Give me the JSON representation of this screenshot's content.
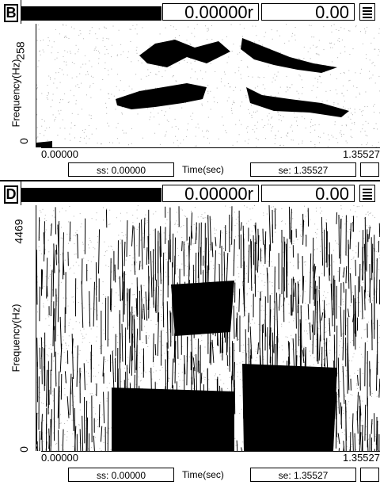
{
  "panels": [
    {
      "id": "B",
      "time_readout": "0.00000r",
      "value_readout": "0.00",
      "y_axis_label": "Frequency(Hz)",
      "y_top": "258",
      "y_bottom": "0",
      "x_left": "0.00000",
      "x_right": "1.35527",
      "ss_label": "ss: 0.00000",
      "time_label": "Time(sec)",
      "se_label": "se: 1.35527"
    },
    {
      "id": "D",
      "time_readout": "0.00000r",
      "value_readout": "0.00",
      "y_axis_label": "Frequency(Hz)",
      "y_top": "4469",
      "y_bottom": "0",
      "x_left": "0.00000",
      "x_right": "1.35527",
      "ss_label": "ss: 0.00000",
      "time_label": "Time(sec)",
      "se_label": "se: 1.35527"
    }
  ],
  "icons": {
    "menu": "menu-icon"
  },
  "colors": {
    "ink": "#000000",
    "paper": "#ffffff",
    "speckle": "#b0b0b0"
  }
}
